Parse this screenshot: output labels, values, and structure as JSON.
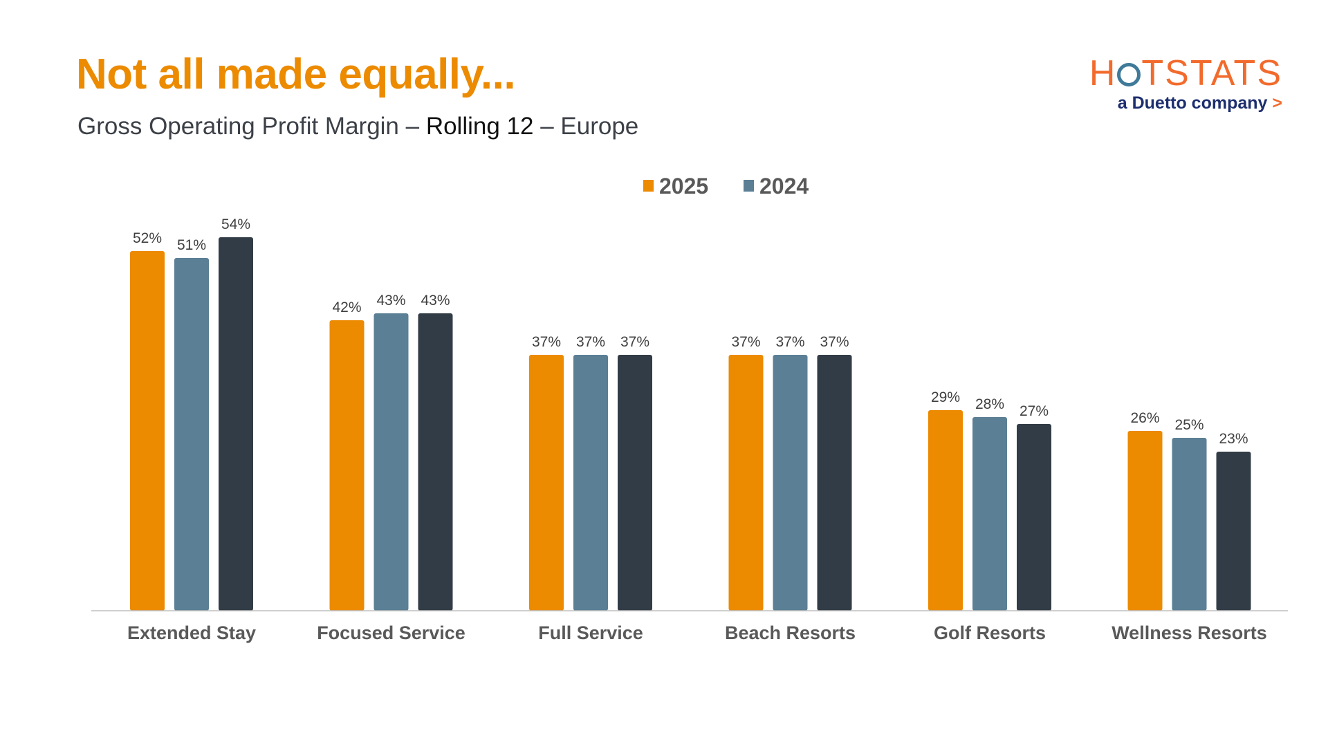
{
  "header": {
    "title": "Not all made equally...",
    "subtitle_part1": "Gross Operating Profit Margin – ",
    "subtitle_part2": "Rolling 12",
    "subtitle_part3": " – Europe"
  },
  "logo": {
    "word_part1": "H",
    "word_part2": "TSTATS",
    "tagline": "a Duetto company",
    "arrow": ">"
  },
  "colors": {
    "title": "#EC8A00",
    "series": [
      "#EC8A00",
      "#5B7F95",
      "#323C46"
    ],
    "axis": "#BFBFBF",
    "category_label": "#595959",
    "data_label": "#404040"
  },
  "chart_data": {
    "type": "bar",
    "title": "Gross Operating Profit Margin – Rolling 12 – Europe",
    "categories": [
      "Extended Stay",
      "Focused Service",
      "Full Service",
      "Beach Resorts",
      "Golf Resorts",
      "Wellness Resorts"
    ],
    "series": [
      {
        "name": "2025",
        "values": [
          52,
          42,
          37,
          37,
          29,
          26
        ],
        "labels": [
          "52%",
          "42%",
          "37%",
          "37%",
          "29%",
          "26%"
        ],
        "in_legend": true
      },
      {
        "name": "2024",
        "values": [
          51,
          43,
          37,
          37,
          28,
          25
        ],
        "labels": [
          "51%",
          "43%",
          "37%",
          "37%",
          "28%",
          "25%"
        ],
        "in_legend": true
      },
      {
        "name": "",
        "values": [
          54,
          43,
          37,
          37,
          27,
          23
        ],
        "labels": [
          "54%",
          "43%",
          "37%",
          "37%",
          "27%",
          "23%"
        ],
        "in_legend": false
      }
    ],
    "legend": [
      "2025",
      "2024"
    ],
    "legend_position": "top-center",
    "ylim": [
      0,
      60
    ],
    "grid": false
  }
}
